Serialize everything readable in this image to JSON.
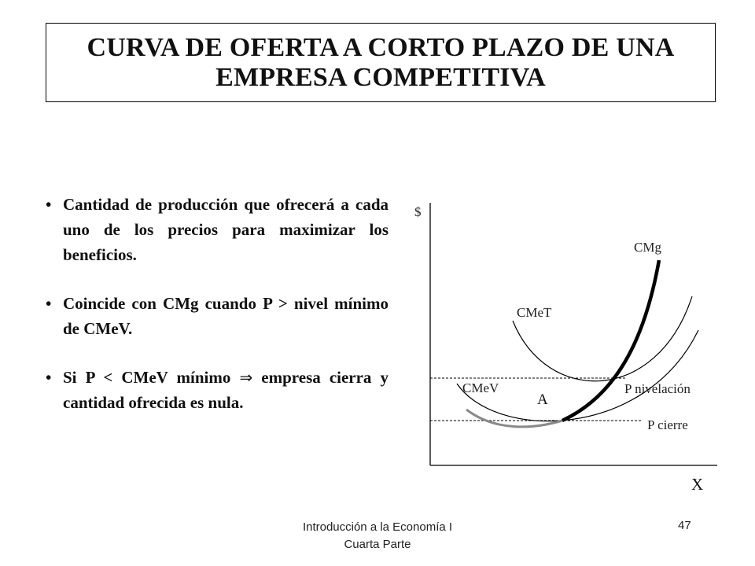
{
  "title": {
    "line1": "CURVA DE OFERTA A CORTO PLAZO DE UNA",
    "line2": "EMPRESA COMPETITIVA"
  },
  "bullets": [
    {
      "text": "Cantidad de producción que ofrecerá  a cada uno de los precios para maximizar los beneficios."
    },
    {
      "text": "Coincide con   CMg cuando P > nivel mínimo de CMeV."
    },
    {
      "before": "Si P < CMeV mínimo ",
      "arrow": "⇒",
      "after": " empresa cierra y cantidad ofrecida es nula."
    }
  ],
  "bullet_marker": "•",
  "diagram": {
    "y_axis_label": "$",
    "x_axis_label": "X",
    "curve_labels": {
      "cmg": "CMg",
      "cmet": "CMeT",
      "cmev": "CMeV",
      "point_a": "A",
      "p_nivelacion": "P nivelación",
      "p_cierre": "P cierre"
    },
    "colors": {
      "curves": "#000000",
      "supply_curve": "#000000",
      "below_shutdown": "#8a8a8a"
    }
  },
  "footer": {
    "line1": "Introducción a la Economía I",
    "line2": "Cuarta Parte"
  },
  "page_number": "47"
}
